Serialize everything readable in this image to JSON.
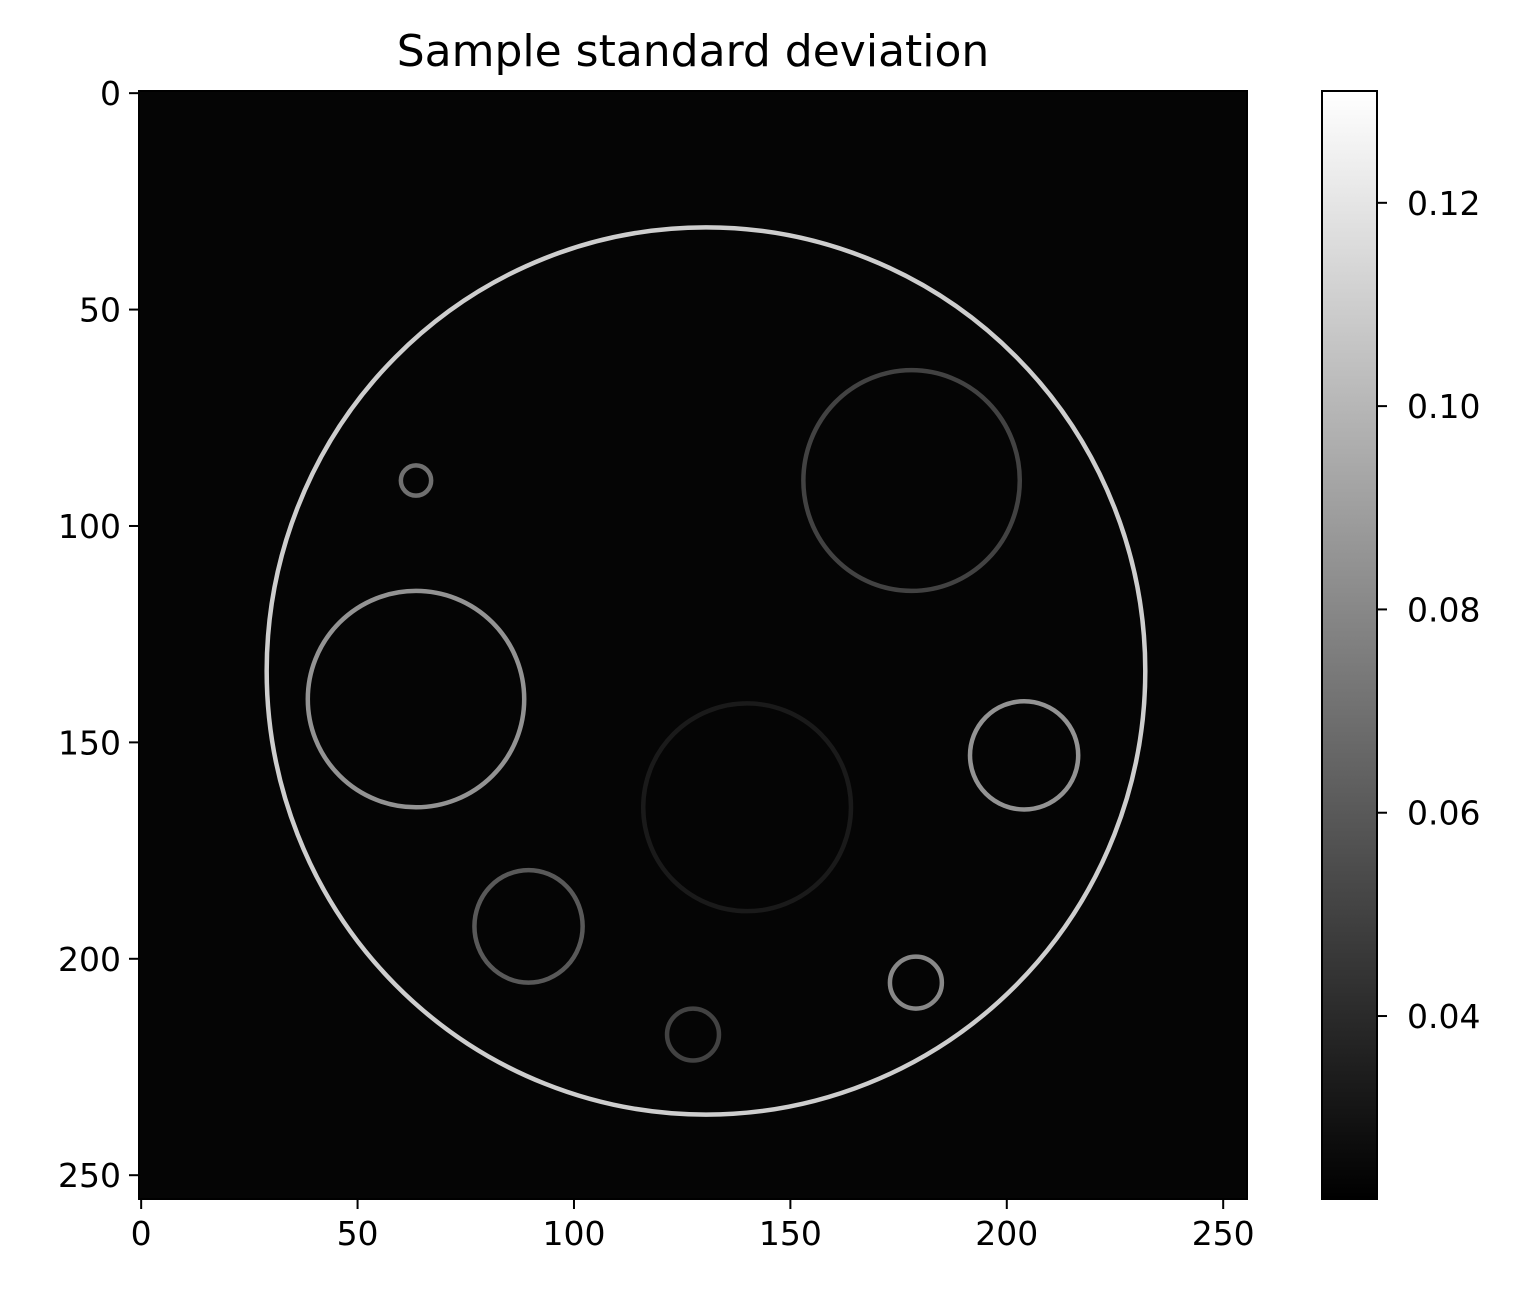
{
  "chart_data": {
    "type": "heatmap",
    "title": "Sample standard deviation",
    "xlabel": "",
    "ylabel": "",
    "colormap": "gray",
    "xlim": [
      0,
      255
    ],
    "ylim": [
      255,
      0
    ],
    "x_ticks": [
      0,
      50,
      100,
      150,
      200,
      250
    ],
    "y_ticks": [
      0,
      50,
      100,
      150,
      200,
      250
    ],
    "background_value": 0.024,
    "colorbar": {
      "range": [
        0.022,
        0.131
      ],
      "ticks": [
        0.04,
        0.06,
        0.08,
        0.1,
        0.12
      ],
      "tick_labels": [
        "0.04",
        "0.06",
        "0.08",
        "0.10",
        "0.12"
      ]
    },
    "rings": [
      {
        "name": "outer-boundary",
        "cx": 130.5,
        "cy": 133.5,
        "rx": 101.5,
        "ry": 102.5,
        "value": 0.11
      },
      {
        "name": "upper-right-large",
        "cx": 178,
        "cy": 89.5,
        "rx": 25,
        "ry": 25.5,
        "value": 0.05
      },
      {
        "name": "left-large",
        "cx": 63.5,
        "cy": 140,
        "rx": 25,
        "ry": 25,
        "value": 0.085
      },
      {
        "name": "tiny-upper-left",
        "cx": 63.5,
        "cy": 89.5,
        "rx": 3.5,
        "ry": 3.5,
        "value": 0.07
      },
      {
        "name": "right-medium",
        "cx": 204,
        "cy": 153,
        "rx": 12.5,
        "ry": 12.5,
        "value": 0.085
      },
      {
        "name": "center-faint",
        "cx": 140,
        "cy": 165,
        "rx": 24,
        "ry": 24,
        "value": 0.033
      },
      {
        "name": "lower-left-medium",
        "cx": 89.5,
        "cy": 192.5,
        "rx": 12.5,
        "ry": 13,
        "value": 0.06
      },
      {
        "name": "lower-right-small",
        "cx": 179,
        "cy": 205.5,
        "rx": 6,
        "ry": 6,
        "value": 0.08
      },
      {
        "name": "bottom-small",
        "cx": 127.5,
        "cy": 217.5,
        "rx": 6,
        "ry": 6,
        "value": 0.05
      }
    ]
  }
}
